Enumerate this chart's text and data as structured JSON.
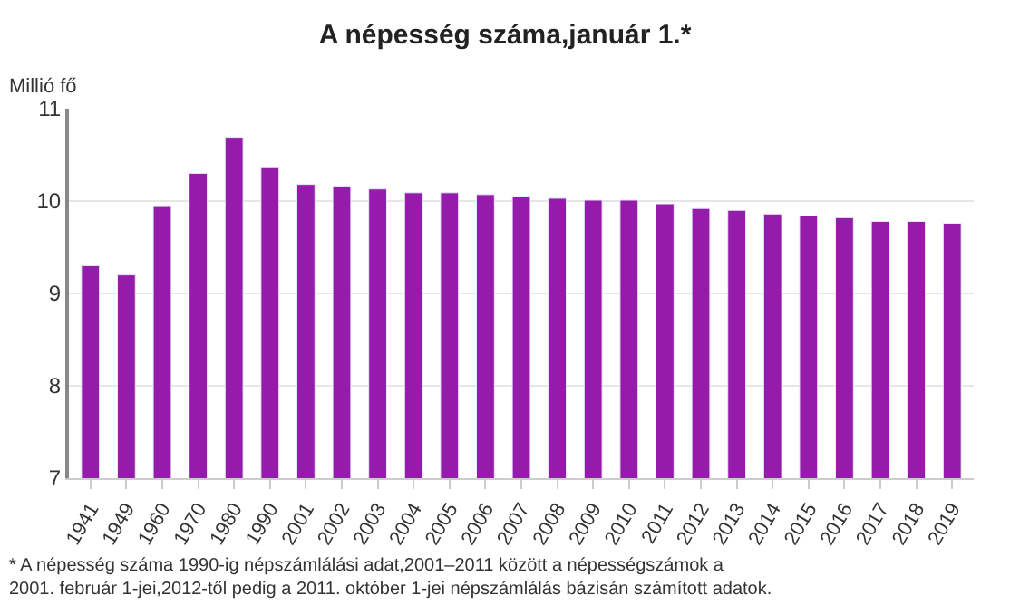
{
  "chart_data": {
    "type": "bar",
    "title": "A népesség száma,január 1.*",
    "ylabel": "Millió fő",
    "categories": [
      "1941",
      "1949",
      "1960",
      "1970",
      "1980",
      "1990",
      "2001",
      "2002",
      "2003",
      "2004",
      "2005",
      "2006",
      "2007",
      "2008",
      "2009",
      "2010",
      "2011",
      "2012",
      "2013",
      "2014",
      "2015",
      "2016",
      "2017",
      "2018",
      "2019"
    ],
    "values": [
      9.3,
      9.2,
      9.94,
      10.3,
      10.69,
      10.37,
      10.18,
      10.16,
      10.13,
      10.09,
      10.09,
      10.07,
      10.05,
      10.03,
      10.01,
      10.01,
      9.97,
      9.92,
      9.9,
      9.86,
      9.84,
      9.82,
      9.78,
      9.78,
      9.76
    ],
    "color": "#951bab",
    "ylim": [
      7,
      11
    ],
    "yticks": [
      7,
      8,
      9,
      10,
      11
    ],
    "grid": "y",
    "annotations": [
      "* A népesség száma 1990-ig népszámlálási adat,2001–2011 között a népességszámok a\n2001. február 1-jei,2012-től pedig a 2011. október 1-jei népszámlálás bázisán számított adatok."
    ]
  }
}
